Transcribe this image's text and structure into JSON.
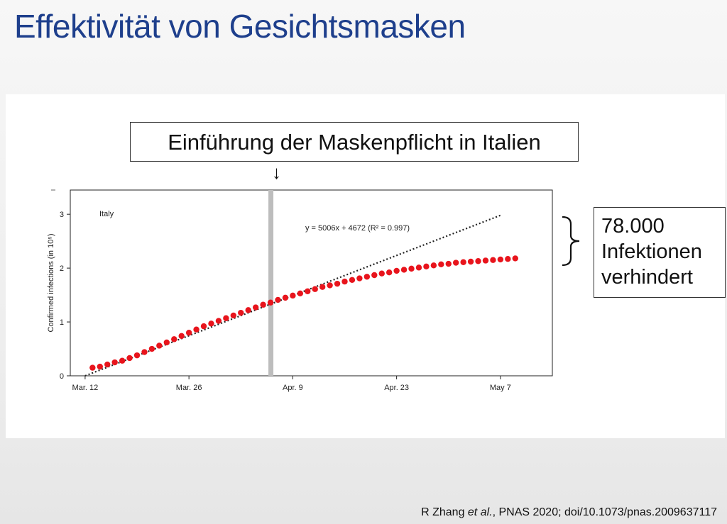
{
  "slide": {
    "title": "Effektivität von Gesichtsmasken",
    "callout": "Einführung der Maskenpflicht in Italien",
    "arrow": "↓",
    "result_lines": [
      "78.000",
      "Infektionen",
      "verhindert"
    ],
    "citation_author": "R Zhang ",
    "citation_etal": "et al.",
    "citation_rest": ", PNAS 2020; doi/10.1073/pnas.2009637117"
  },
  "chart_data": {
    "type": "scatter",
    "panel_label": "Italy",
    "ylabel": "Confirmed infections (in 10⁵)",
    "xlabel": "",
    "x_ticks": [
      "Mar. 12",
      "Mar. 26",
      "Apr. 9",
      "Apr. 23",
      "May 7"
    ],
    "x_tick_days": [
      0,
      14,
      28,
      42,
      56
    ],
    "y_ticks": [
      0,
      1,
      2,
      3
    ],
    "ylim": [
      0,
      3.45
    ],
    "xlim": [
      -2,
      63
    ],
    "grid": false,
    "intervention_day": 25,
    "fit": {
      "label": "y = 5006x + 4672 (R² = 0.997)",
      "start": [
        0,
        0.0
      ],
      "end": [
        56,
        2.98
      ]
    },
    "series": [
      {
        "color": "#e8141c",
        "x": [
          1,
          2,
          3,
          4,
          5,
          6,
          7,
          8,
          9,
          10,
          11,
          12,
          13,
          14,
          15,
          16,
          17,
          18,
          19,
          20,
          21,
          22,
          23,
          24,
          25,
          26,
          27,
          28,
          29,
          30,
          31,
          32,
          33,
          34,
          35,
          36,
          37,
          38,
          39,
          40,
          41,
          42,
          43,
          44,
          45,
          46,
          47,
          48,
          49,
          50,
          51,
          52,
          53,
          54,
          55,
          56,
          57,
          58
        ],
        "y": [
          0.15,
          0.17,
          0.21,
          0.25,
          0.28,
          0.33,
          0.38,
          0.44,
          0.5,
          0.56,
          0.62,
          0.68,
          0.74,
          0.8,
          0.86,
          0.92,
          0.97,
          1.02,
          1.07,
          1.12,
          1.17,
          1.22,
          1.27,
          1.32,
          1.36,
          1.41,
          1.45,
          1.49,
          1.53,
          1.57,
          1.61,
          1.65,
          1.68,
          1.71,
          1.75,
          1.78,
          1.81,
          1.84,
          1.87,
          1.9,
          1.92,
          1.95,
          1.97,
          1.99,
          2.01,
          2.03,
          2.05,
          2.07,
          2.08,
          2.1,
          2.11,
          2.12,
          2.13,
          2.14,
          2.15,
          2.16,
          2.17,
          2.18
        ]
      }
    ]
  }
}
